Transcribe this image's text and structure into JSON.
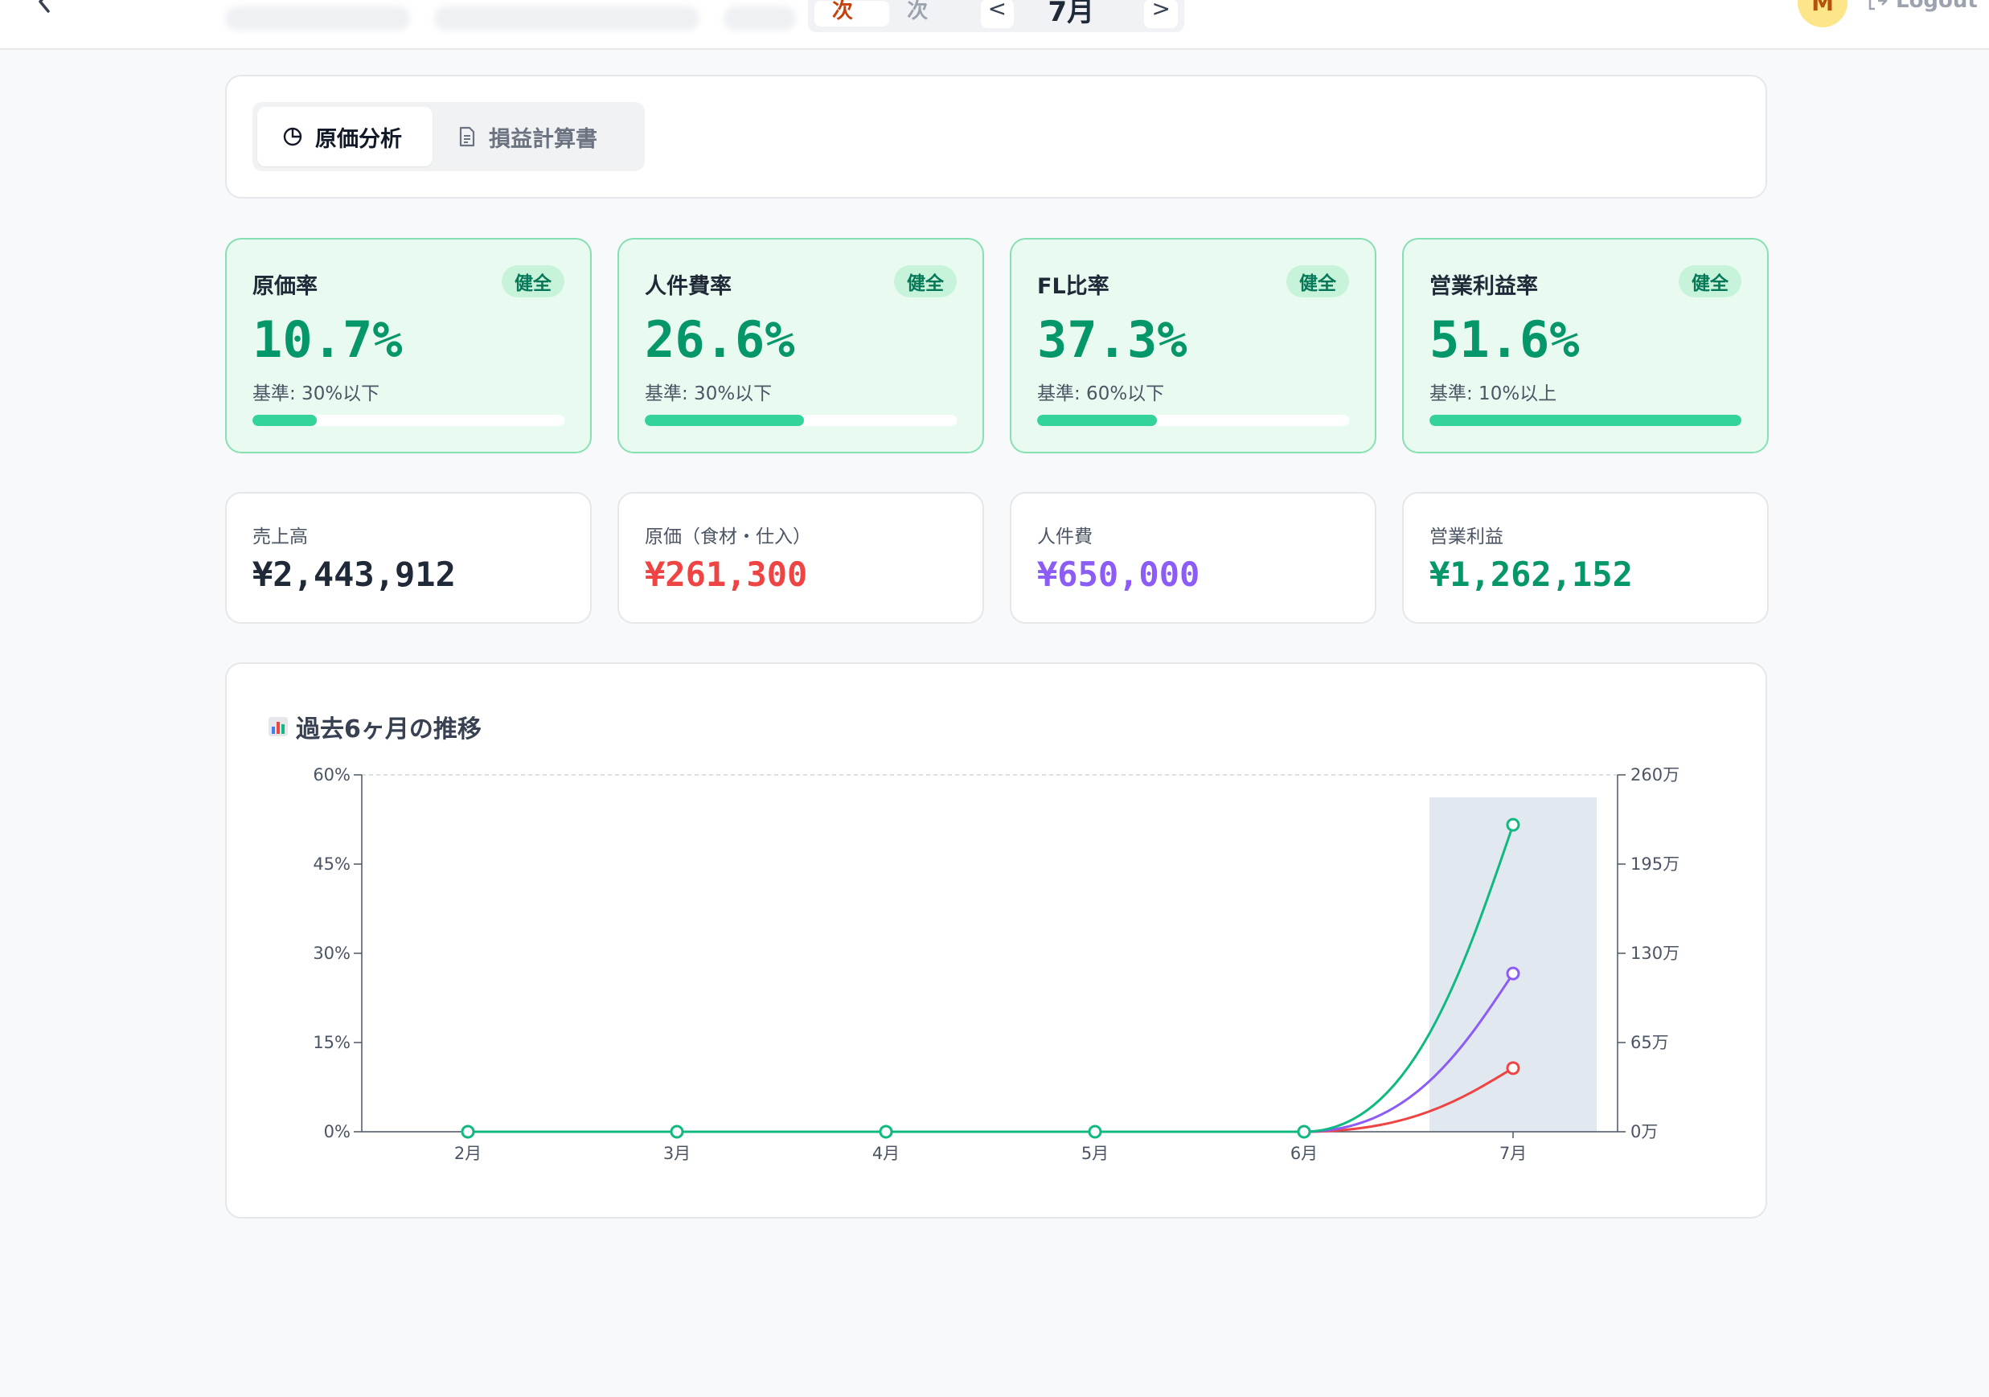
{
  "header": {
    "period_tabs": [
      "月次",
      "年次"
    ],
    "prev_label": "<",
    "next_label": ">",
    "current_month": "7月",
    "avatar_initial": "M",
    "logout_label": "Logout"
  },
  "tabs": [
    {
      "label": "原価分析",
      "icon": "pie-chart-icon",
      "active": true
    },
    {
      "label": "損益計算書",
      "icon": "document-icon",
      "active": false
    }
  ],
  "kpis": [
    {
      "title": "原価率",
      "badge": "健全",
      "value": "10.7%",
      "standard": "基準: 30%以下",
      "progress": 0.205
    },
    {
      "title": "人件費率",
      "badge": "健全",
      "value": "26.6%",
      "standard": "基準: 30%以下",
      "progress": 0.51
    },
    {
      "title": "FL比率",
      "badge": "健全",
      "value": "37.3%",
      "standard": "基準: 60%以下",
      "progress": 0.385
    },
    {
      "title": "営業利益率",
      "badge": "健全",
      "value": "51.6%",
      "standard": "基準: 10%以上",
      "progress": 1.0
    }
  ],
  "amounts": [
    {
      "label": "売上高",
      "value": "¥2,443,912",
      "color": "#1f2937"
    },
    {
      "label": "原価（食材・仕入）",
      "value": "¥261,300",
      "color": "#ef4444"
    },
    {
      "label": "人件費",
      "value": "¥650,000",
      "color": "#8b5cf6"
    },
    {
      "label": "営業利益",
      "value": "¥1,262,152",
      "color": "#059669"
    }
  ],
  "chart": {
    "title": "過去6ヶ月の推移",
    "icon": "bar-chart-icon"
  },
  "chart_data": {
    "type": "line",
    "categories": [
      "2月",
      "3月",
      "4月",
      "5月",
      "6月",
      "7月"
    ],
    "highlighted_category": "7月",
    "left_axis": {
      "ticks": [
        "0%",
        "15%",
        "30%",
        "45%",
        "60%"
      ],
      "ylim": [
        0,
        60
      ]
    },
    "right_axis": {
      "ticks": [
        "0万",
        "65万",
        "130万",
        "195万",
        "260万"
      ],
      "ylim": [
        0,
        260
      ]
    },
    "series": [
      {
        "values": [
          0,
          0,
          0,
          0,
          0,
          10.7
        ],
        "color": "#ef4444"
      },
      {
        "values": [
          0,
          0,
          0,
          0,
          0,
          26.6
        ],
        "color": "#8b5cf6"
      },
      {
        "values": [
          0,
          0,
          0,
          0,
          0,
          51.6
        ],
        "color": "#10b981"
      }
    ],
    "grid": false,
    "legend": "none"
  }
}
